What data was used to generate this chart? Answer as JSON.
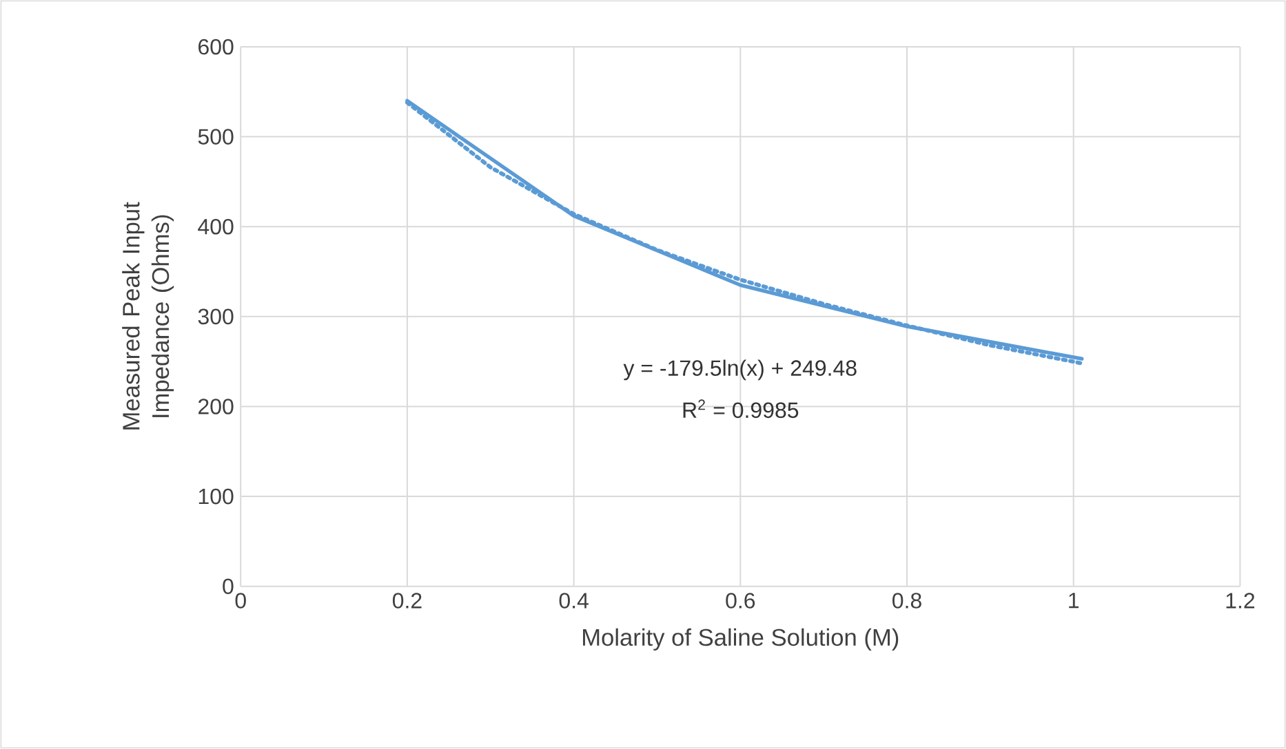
{
  "chart_data": {
    "type": "line",
    "xlabel": "Molarity of Saline Solution (M)",
    "ylabel": "Measured Peak Input Impedance (Ohms)",
    "xlim": [
      0,
      1.2
    ],
    "xticks": [
      0,
      0.2,
      0.4,
      0.6,
      0.8,
      1,
      1.2
    ],
    "ylim": [
      0,
      600
    ],
    "yticks": [
      0,
      100,
      200,
      300,
      400,
      500,
      600
    ],
    "grid": true,
    "marker": "none",
    "x": [
      0.2,
      0.4,
      0.6,
      0.8,
      1.01
    ],
    "series": [
      {
        "color": "#5b9bd5",
        "line_style": "solid",
        "values": [
          540,
          412,
          335,
          289,
          253
        ]
      },
      {
        "color": "#5b9bd5",
        "line_style": "dotted",
        "x": [
          0.2,
          0.3,
          0.4,
          0.5,
          0.6,
          0.7,
          0.8,
          0.9,
          1.01
        ],
        "values": [
          538,
          466,
          414,
          374,
          341,
          314,
          290,
          268,
          248
        ]
      }
    ],
    "annotations": [
      "y = -179.5ln(x) + 249.48",
      "R$^{2}$ = 0.9985"
    ]
  }
}
